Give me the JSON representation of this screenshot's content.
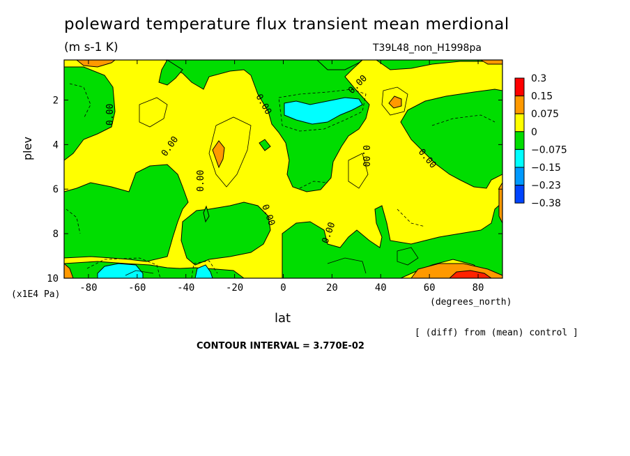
{
  "chart_data": {
    "type": "heatmap",
    "title": "poleward temperature flux transient mean merdional",
    "units": "(m s-1 K)",
    "run_id": "T39L48_non_H1998pa",
    "xlabel": "lat",
    "x_units": "(degrees_north)",
    "ylabel": "plev",
    "y_units": "(x1E4 Pa)",
    "xlim": [
      -90,
      90
    ],
    "ylim": [
      10,
      0.2
    ],
    "x_ticks": [
      "-80",
      "-60",
      "-40",
      "-20",
      "0",
      "20",
      "40",
      "60",
      "80"
    ],
    "y_ticks": [
      "2",
      "4",
      "6",
      "8",
      "10"
    ],
    "colorbar": {
      "levels": [
        "0.3",
        "0.15",
        "0.075",
        "0",
        "−0.075",
        "−0.15",
        "−0.23",
        "−0.38"
      ],
      "colors": [
        "#ff0000",
        "#ff9900",
        "#ffff00",
        "#00dd00",
        "#00ffff",
        "#0099ff",
        "#0044ff"
      ]
    },
    "contour_labels": [
      "0.00"
    ],
    "note": "[ (diff) from (mean) control ]",
    "contour_interval": "CONTOUR INTERVAL = 3.770E-02"
  },
  "colors": {
    "pos_low": "#ffff00",
    "neg_low": "#00dd00",
    "neg_mid": "#00ffff",
    "pos_mid": "#ff9900",
    "pos_high": "#ff0000",
    "neg_high": "#0099ff"
  }
}
